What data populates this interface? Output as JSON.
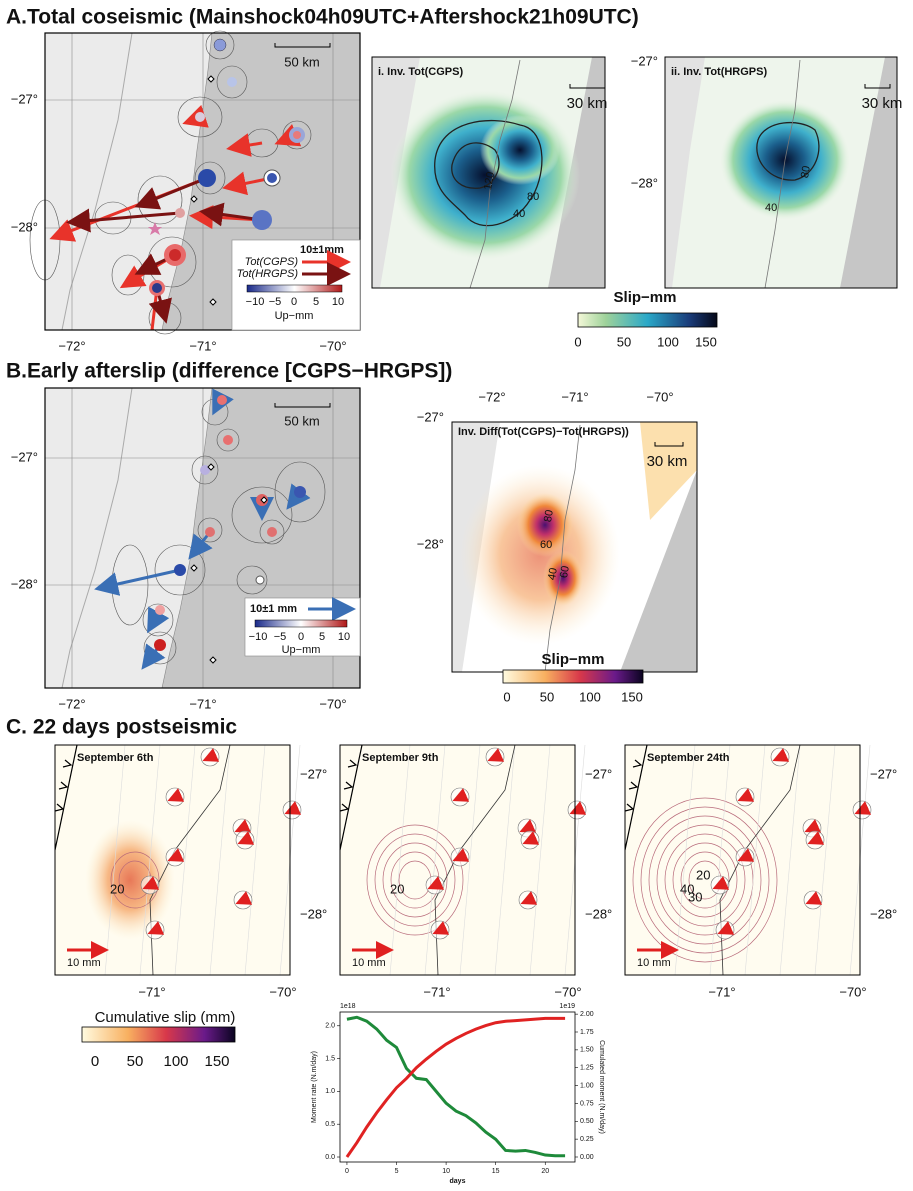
{
  "panel_a": {
    "title": "A.Total coseismic (Mainshock04h09UTC+Aftershock21h09UTC)",
    "map": {
      "lat_ticks": [
        "−27°",
        "−28°"
      ],
      "lon_ticks": [
        "−72°",
        "−71°",
        "−70°"
      ],
      "scale": "50 km",
      "legend": {
        "amplitude": "10±1mm",
        "series": [
          "Tot(CGPS)",
          "Tot(HRGPS)"
        ],
        "colorbar_ticks": [
          "−10",
          "−5",
          "0",
          "5",
          "10"
        ],
        "colorbar_label": "Up−mm"
      }
    },
    "inv_i": {
      "title": "i. Inv. Tot(CGPS)",
      "scale": "30 km",
      "contours": [
        "120",
        "80",
        "40"
      ]
    },
    "inv_ii": {
      "title": "ii. Inv. Tot(HRGPS)",
      "scale": "30 km",
      "lat_ticks": [
        "−27°",
        "−28°"
      ],
      "contours": [
        "80",
        "40"
      ]
    },
    "colorbar": {
      "label": "Slip−mm",
      "ticks": [
        "0",
        "50",
        "100",
        "150"
      ]
    }
  },
  "panel_b": {
    "title": "B.Early afterslip (difference [CGPS−HRGPS])",
    "map": {
      "lat_ticks": [
        "−27°",
        "−28°"
      ],
      "lon_ticks": [
        "−72°",
        "−71°",
        "−70°"
      ],
      "scale": "50 km",
      "legend": {
        "amplitude": "10±1 mm",
        "colorbar_ticks": [
          "−10",
          "−5",
          "0",
          "5",
          "10"
        ],
        "colorbar_label": "Up−mm"
      }
    },
    "inv": {
      "title": "Inv. Diff(Tot(CGPS)−Tot(HRGPS))",
      "scale": "30 km",
      "lon_ticks": [
        "−72°",
        "−71°",
        "−70°"
      ],
      "lat_ticks": [
        "−27°",
        "−28°"
      ],
      "contours": [
        "80",
        "60",
        "40",
        "60"
      ]
    },
    "colorbar": {
      "label": "Slip−mm",
      "ticks": [
        "0",
        "50",
        "100",
        "150"
      ]
    }
  },
  "panel_c": {
    "title": "C. 22 days postseismic",
    "maps": [
      {
        "date": "September 6th",
        "scale": "10 mm",
        "lat_ticks": [
          "−27°",
          "−28°"
        ],
        "lon_ticks": [
          "−71°",
          "−70°"
        ],
        "contours": [
          "20"
        ]
      },
      {
        "date": "September 9th",
        "scale": "10 mm",
        "lat_ticks": [
          "−27°",
          "−28°"
        ],
        "lon_ticks": [
          "−71°",
          "−70°"
        ],
        "contours": [
          "20"
        ]
      },
      {
        "date": "September 24th",
        "scale": "10 mm",
        "lat_ticks": [
          "−27°",
          "−28°"
        ],
        "lon_ticks": [
          "−71°",
          "−70°"
        ],
        "contours": [
          "40",
          "30",
          "20"
        ]
      }
    ],
    "colorbar": {
      "label": "Cumulative slip (mm)",
      "ticks": [
        "0",
        "50",
        "100",
        "150"
      ]
    }
  },
  "chart_data": {
    "type": "line",
    "x_label": "days",
    "y_label": "Moment rate (N.m/day)",
    "y2_label": "Cumulated moment (N.m/day)",
    "y_offset": "1e18",
    "y2_offset": "1e19",
    "x": [
      0,
      1,
      2,
      3,
      4,
      5,
      6,
      7,
      8,
      9,
      10,
      11,
      12,
      13,
      14,
      15,
      16,
      17,
      18,
      19,
      20,
      21,
      22
    ],
    "series": [
      {
        "color": "#1e8a3a",
        "values": [
          2.1,
          2.13,
          2.07,
          1.95,
          1.78,
          1.67,
          1.35,
          1.2,
          1.18,
          1.0,
          0.82,
          0.7,
          0.63,
          0.52,
          0.38,
          0.27,
          0.1,
          0.09,
          0.1,
          0.07,
          0.03,
          0.02,
          0.02
        ]
      },
      {
        "color": "#e02222",
        "axis": "y2",
        "values": [
          0,
          0.2,
          0.42,
          0.62,
          0.8,
          0.97,
          1.1,
          1.25,
          1.37,
          1.48,
          1.58,
          1.66,
          1.73,
          1.79,
          1.84,
          1.88,
          1.9,
          1.91,
          1.92,
          1.93,
          1.94,
          1.94,
          1.94
        ]
      }
    ],
    "xlim": [
      -0.7,
      23.0
    ],
    "xticks": [
      0,
      5,
      10,
      15,
      20
    ],
    "ylim": [
      -0.076,
      2.21
    ],
    "yticks": [
      {
        "value": 0,
        "label": "0.0"
      },
      {
        "value": 0.5,
        "label": "0.5"
      },
      {
        "value": 1,
        "label": "1.0"
      },
      {
        "value": 1.5,
        "label": "1.5"
      },
      {
        "value": 2,
        "label": "2.0"
      }
    ],
    "y2lim": [
      -0.07,
      2.03
    ],
    "y2ticks": [
      {
        "value": 0,
        "label": "0.00"
      },
      {
        "value": 0.25,
        "label": "0.25"
      },
      {
        "value": 0.5,
        "label": "0.50"
      },
      {
        "value": 0.75,
        "label": "0.75"
      },
      {
        "value": 1,
        "label": "1.00"
      },
      {
        "value": 1.25,
        "label": "1.25"
      },
      {
        "value": 1.5,
        "label": "1.50"
      },
      {
        "value": 1.75,
        "label": "1.75"
      },
      {
        "value": 2,
        "label": "2.00"
      }
    ]
  }
}
